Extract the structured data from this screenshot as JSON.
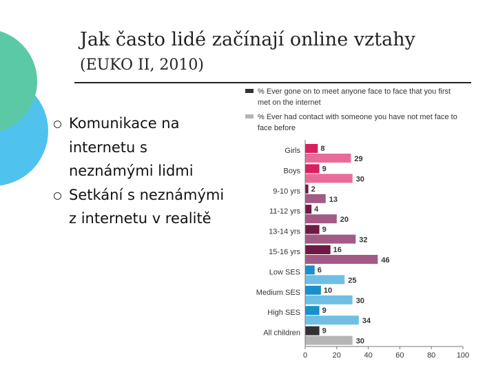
{
  "slide": {
    "title": "Jak často lidé začínají online vztahy",
    "subtitle": "(EUKO II, 2010)",
    "bullets": [
      "Komunikace na internetu s neznámými lidmi",
      "Setkání s neznámými z internetu v realitě"
    ]
  },
  "chart_data": {
    "type": "bar",
    "orientation": "horizontal",
    "categories": [
      "Girls",
      "Boys",
      "9-10 yrs",
      "11-12 yrs",
      "13-14 yrs",
      "15-16 yrs",
      "Low SES",
      "Medium SES",
      "High SES",
      "All children"
    ],
    "series": [
      {
        "name": "% Ever gone on to meet anyone face to face that you first met on the internet",
        "values": [
          8,
          9,
          2,
          4,
          9,
          16,
          6,
          10,
          9,
          9
        ]
      },
      {
        "name": "% Ever had contact with someone you have not met face to face before",
        "values": [
          29,
          30,
          13,
          20,
          32,
          46,
          25,
          30,
          34,
          30
        ]
      }
    ],
    "colors": {
      "met": [
        "#d6215e",
        "#d6215e",
        "#6e1a45",
        "#6e1a45",
        "#6e1a45",
        "#6e1a45",
        "#1a8fc9",
        "#1a8fc9",
        "#1a8fc9",
        "#333333"
      ],
      "contact": [
        "#e96b9a",
        "#e96b9a",
        "#a35a86",
        "#a35a86",
        "#a35a86",
        "#a35a86",
        "#6fbfe4",
        "#6fbfe4",
        "#6fbfe4",
        "#b5b5b5"
      ],
      "legend_met": "#333333",
      "legend_contact": "#b5b5b5"
    },
    "xticks": [
      0,
      20,
      40,
      60,
      80,
      100
    ],
    "xlim": [
      0,
      100
    ],
    "legend_position": "top",
    "grid": false,
    "title": "",
    "xlabel": "",
    "ylabel": ""
  }
}
